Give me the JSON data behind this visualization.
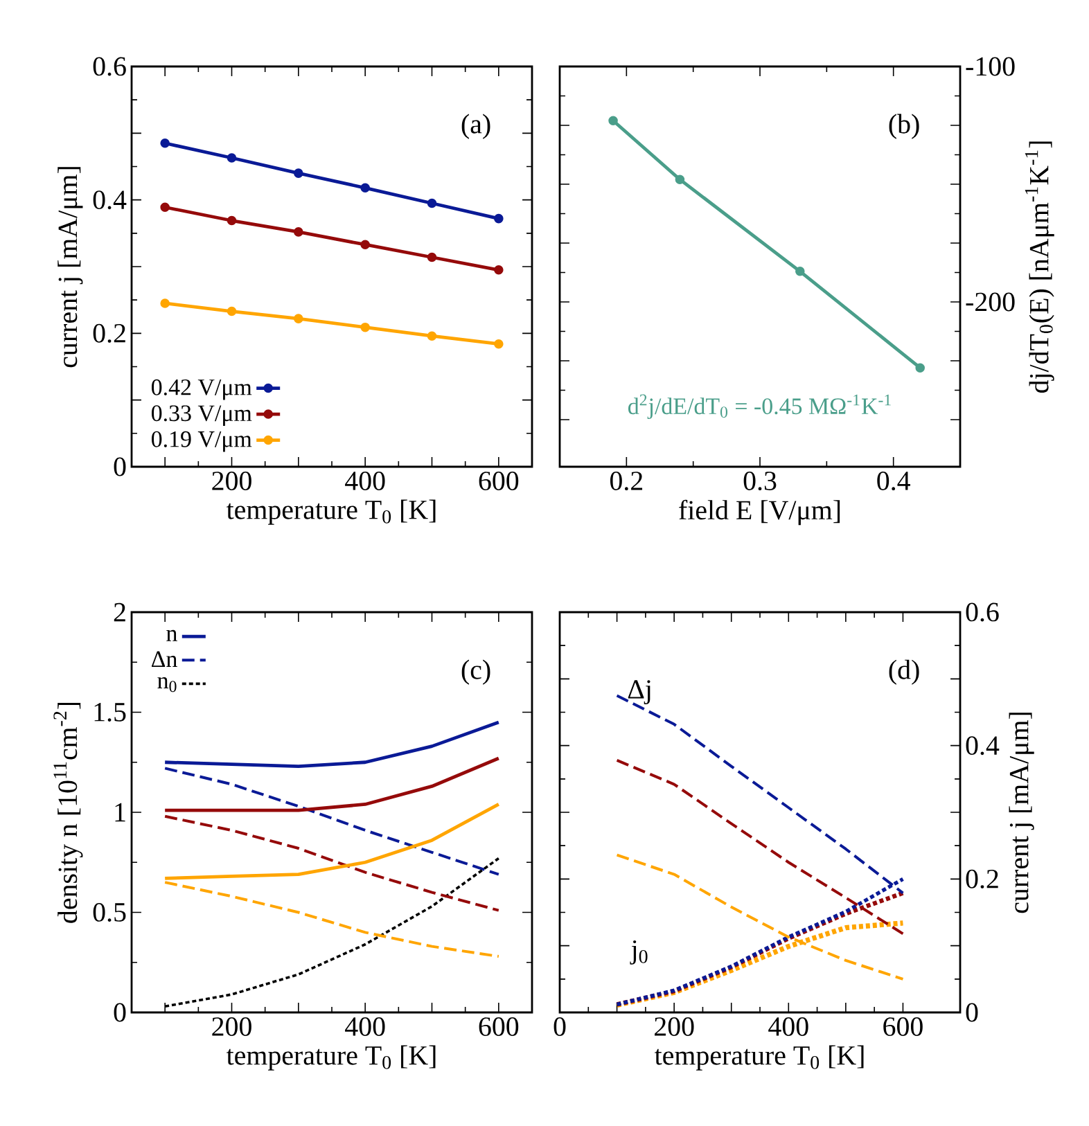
{
  "chart_data": [
    {
      "type": "line",
      "x": [
        100,
        200,
        300,
        400,
        500,
        600
      ],
      "xlim": [
        50,
        650
      ],
      "xticks": [
        {
          "value": 100,
          "label": null
        },
        200,
        {
          "value": 300,
          "label": null
        },
        400,
        {
          "value": 500,
          "label": null
        },
        600
      ],
      "ylim": [
        0,
        0.6
      ],
      "yticks": [
        0,
        {
          "value": 0.1,
          "label": null
        },
        0.2,
        {
          "value": 0.3,
          "label": null
        },
        0.4,
        {
          "value": 0.5,
          "label": null
        },
        0.6
      ],
      "xlabel": "temperature T$_{0}$ [K]",
      "ylabel": "current j [mA/μm]",
      "legend": "bottom left",
      "marker": "circle",
      "annotations": [
        "(a)"
      ],
      "series": [
        {
          "name": "0.42 V/μm",
          "color": "#0a1a96",
          "line_style": "solid",
          "values": [
            0.485,
            0.463,
            0.44,
            0.418,
            0.395,
            0.372
          ]
        },
        {
          "name": "0.33 V/μm",
          "color": "#950a0a",
          "line_style": "solid",
          "values": [
            0.389,
            0.369,
            0.352,
            0.333,
            0.314,
            0.295
          ]
        },
        {
          "name": "0.19 V/μm",
          "color": "#ffa500",
          "line_style": "solid",
          "values": [
            0.245,
            0.233,
            0.222,
            0.209,
            0.196,
            0.184
          ]
        }
      ]
    },
    {
      "type": "line",
      "x": [
        0.19,
        0.24,
        0.33,
        0.42
      ],
      "xlim": [
        0.15,
        0.45
      ],
      "xticks": [
        0.2,
        0.3,
        0.4
      ],
      "y2lim": [
        -270,
        -100
      ],
      "y2ticks": [
        -100,
        {
          "value": -125,
          "label": null
        },
        {
          "value": -150,
          "label": null
        },
        {
          "value": -175,
          "label": null
        },
        -200,
        {
          "value": -225,
          "label": null
        },
        {
          "value": -250,
          "label": null
        }
      ],
      "xlabel": "field E [V/μm]",
      "y2label": "dj/dT$_{0}$(E) [nAμm$^{-1}$K$^{-1}$]",
      "marker": "circle",
      "annotations": [
        "(b)",
        "d$^{2}$j/dE/dT$_{0}$ = -0.45 MΩ$^{-1}$K$^{-1}$"
      ],
      "series": [
        {
          "color": "#4a9e8a",
          "line_style": "solid",
          "axis": "y2",
          "values": [
            -123,
            -148,
            -187,
            -228
          ]
        }
      ]
    },
    {
      "type": "line",
      "x": [
        100,
        200,
        300,
        400,
        500,
        600
      ],
      "xlim": [
        50,
        650
      ],
      "xticks": [
        {
          "value": 100,
          "label": null
        },
        200,
        {
          "value": 300,
          "label": null
        },
        400,
        {
          "value": 500,
          "label": null
        },
        600
      ],
      "ylim": [
        0,
        2
      ],
      "yticks": [
        0,
        0.5,
        1,
        1.5,
        2
      ],
      "xlabel": "temperature T$_{0}$ [K]",
      "ylabel": "density n [10$^{11}$cm$^{-2}$]",
      "legend": "top left",
      "annotations": [
        "(c)"
      ],
      "series": [
        {
          "name": "n",
          "color": "#0a1a96",
          "line_style": "solid",
          "values": [
            1.25,
            1.24,
            1.23,
            1.25,
            1.33,
            1.45
          ]
        },
        {
          "color": "#950a0a",
          "line_style": "solid",
          "values": [
            1.01,
            1.01,
            1.01,
            1.04,
            1.13,
            1.27
          ]
        },
        {
          "color": "#ffa500",
          "line_style": "solid",
          "values": [
            0.67,
            0.68,
            0.69,
            0.75,
            0.86,
            1.04
          ]
        },
        {
          "name": "Δn",
          "color": "#0a1a96",
          "line_style": "dashed",
          "values": [
            1.22,
            1.14,
            1.03,
            0.91,
            0.8,
            0.69
          ]
        },
        {
          "color": "#950a0a",
          "line_style": "dashed",
          "values": [
            0.98,
            0.91,
            0.82,
            0.7,
            0.6,
            0.51
          ]
        },
        {
          "color": "#ffa500",
          "line_style": "dashed",
          "values": [
            0.65,
            0.58,
            0.5,
            0.4,
            0.33,
            0.28
          ]
        },
        {
          "name": "n$_{0}$",
          "color": "#000000",
          "line_style": "dotted",
          "values": [
            0.03,
            0.09,
            0.19,
            0.34,
            0.53,
            0.77
          ]
        }
      ]
    },
    {
      "type": "line",
      "x": [
        100,
        200,
        300,
        400,
        500,
        600
      ],
      "xlim": [
        0,
        700
      ],
      "xticks": [
        0,
        {
          "value": 100,
          "label": null
        },
        200,
        {
          "value": 300,
          "label": null
        },
        400,
        {
          "value": 500,
          "label": null
        },
        600
      ],
      "y2lim": [
        0,
        0.6
      ],
      "y2ticks": [
        0,
        {
          "value": 0.1,
          "label": null
        },
        0.2,
        {
          "value": 0.3,
          "label": null
        },
        0.4,
        {
          "value": 0.5,
          "label": null
        },
        0.6
      ],
      "xlabel": "temperature T$_{0}$ [K]",
      "y2label": "current j [mA/μm]",
      "annotations": [
        "(d)",
        "Δj",
        "j$_{0}$"
      ],
      "series": [
        {
          "color": "#0a1a96",
          "line_style": "dashed",
          "axis": "y2",
          "values": [
            0.475,
            0.432,
            0.369,
            0.307,
            0.245,
            0.179
          ]
        },
        {
          "color": "#950a0a",
          "line_style": "dashed",
          "axis": "y2",
          "values": [
            0.378,
            0.342,
            0.283,
            0.225,
            0.172,
            0.118
          ]
        },
        {
          "color": "#ffa500",
          "line_style": "dashed",
          "axis": "y2",
          "values": [
            0.236,
            0.207,
            0.158,
            0.113,
            0.078,
            0.05
          ]
        },
        {
          "color": "#0a1a96",
          "line_style": "dotted",
          "axis": "y2",
          "values": [
            0.012,
            0.033,
            0.069,
            0.113,
            0.151,
            0.2
          ]
        },
        {
          "color": "#950a0a",
          "line_style": "dotted",
          "axis": "y2",
          "values": [
            0.012,
            0.032,
            0.068,
            0.111,
            0.148,
            0.179
          ]
        },
        {
          "color": "#ffa500",
          "line_style": "dotted",
          "axis": "y2",
          "values": [
            0.011,
            0.03,
            0.063,
            0.099,
            0.127,
            0.134
          ]
        }
      ]
    }
  ]
}
